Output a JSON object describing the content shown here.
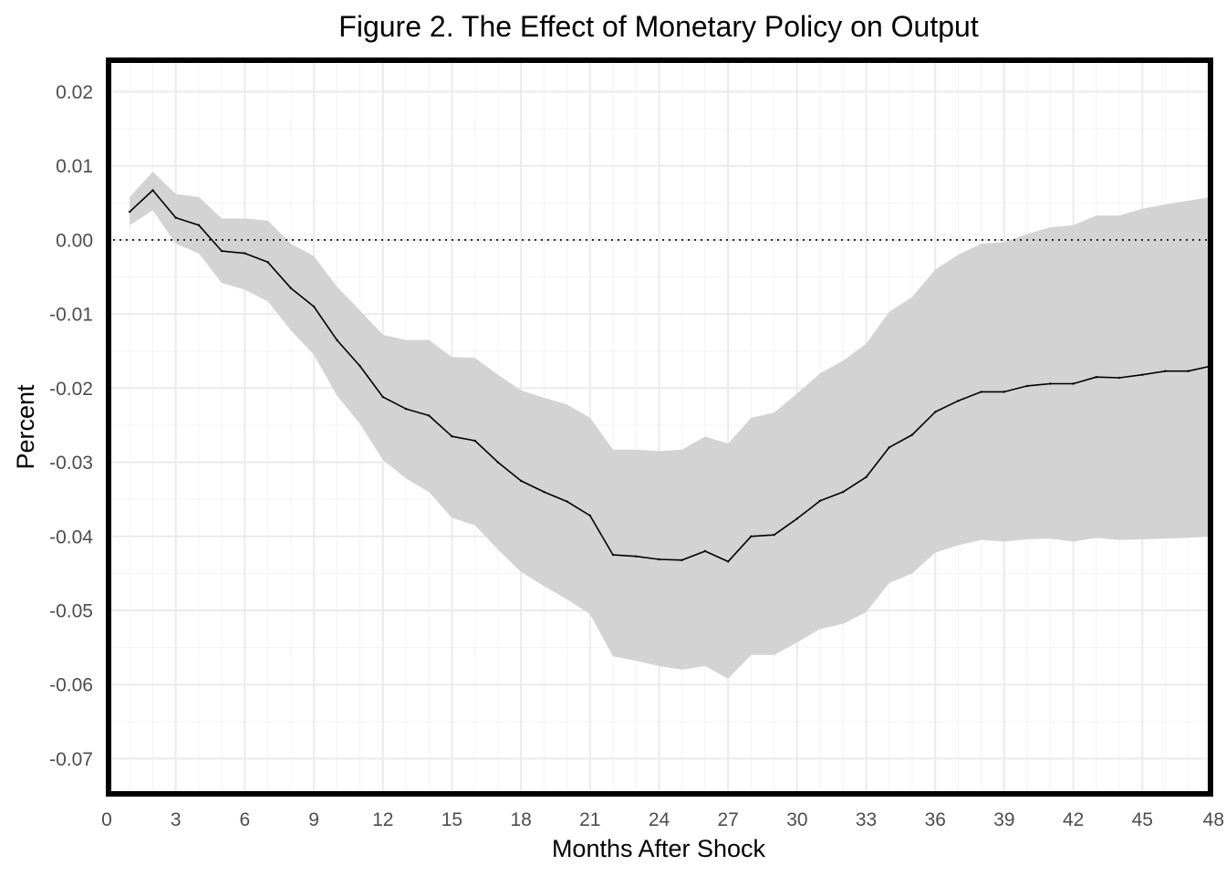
{
  "chart_data": {
    "type": "line",
    "title": "Figure 2. The Effect of Monetary Policy on Output",
    "xlabel": "Months After Shock",
    "ylabel": "Percent",
    "xlim": [
      0,
      48
    ],
    "ylim": [
      -0.075,
      0.0245
    ],
    "x_ticks": [
      0,
      3,
      6,
      9,
      12,
      15,
      18,
      21,
      24,
      27,
      30,
      33,
      36,
      39,
      42,
      45,
      48
    ],
    "x_tick_labels": [
      "0",
      "3",
      "6",
      "9",
      "12",
      "15",
      "18",
      "21",
      "24",
      "27",
      "30",
      "33",
      "36",
      "39",
      "42",
      "45",
      "48"
    ],
    "y_ticks": [
      0.02,
      0.01,
      0.0,
      -0.01,
      -0.02,
      -0.03,
      -0.04,
      -0.05,
      -0.06,
      -0.07
    ],
    "y_tick_labels": [
      "0.02",
      "0.01",
      "0.00",
      "-0.01",
      "-0.02",
      "-0.03",
      "-0.04",
      "-0.05",
      "-0.06",
      "-0.07"
    ],
    "grid": true,
    "reference_line": 0.0,
    "x": [
      1,
      2,
      3,
      4,
      5,
      6,
      7,
      8,
      9,
      10,
      11,
      12,
      13,
      14,
      15,
      16,
      17,
      18,
      19,
      20,
      21,
      22,
      23,
      24,
      25,
      26,
      27,
      28,
      29,
      30,
      31,
      32,
      33,
      34,
      35,
      36,
      37,
      38,
      39,
      40,
      41,
      42,
      43,
      44,
      45,
      46,
      47,
      48
    ],
    "series": [
      {
        "values": [
          0.0038,
          0.0067,
          0.003,
          0.002,
          -0.0015,
          -0.0018,
          -0.003,
          -0.0065,
          -0.009,
          -0.0135,
          -0.017,
          -0.0212,
          -0.0228,
          -0.0237,
          -0.0265,
          -0.0271,
          -0.03,
          -0.0325,
          -0.034,
          -0.0353,
          -0.0372,
          -0.0425,
          -0.0427,
          -0.0431,
          -0.0432,
          -0.042,
          -0.0434,
          -0.04,
          -0.0398,
          -0.0376,
          -0.0352,
          -0.034,
          -0.032,
          -0.028,
          -0.0263,
          -0.0232,
          -0.0217,
          -0.0205,
          -0.0205,
          -0.0197,
          -0.0194,
          -0.0194,
          -0.0185,
          -0.0186,
          -0.0182,
          -0.0177,
          -0.0177,
          -0.017
        ],
        "upper": [
          0.0058,
          0.0092,
          0.0062,
          0.0058,
          0.0029,
          0.0029,
          0.0026,
          -0.0005,
          -0.0022,
          -0.0063,
          -0.0095,
          -0.0128,
          -0.0135,
          -0.0135,
          -0.0158,
          -0.0159,
          -0.0182,
          -0.0203,
          -0.0213,
          -0.0222,
          -0.024,
          -0.0283,
          -0.0283,
          -0.0285,
          -0.0283,
          -0.0265,
          -0.0275,
          -0.024,
          -0.0233,
          -0.0207,
          -0.018,
          -0.0163,
          -0.014,
          -0.0097,
          -0.0077,
          -0.004,
          -0.002,
          -0.0005,
          -0.0003,
          0.0008,
          0.0017,
          0.002,
          0.0033,
          0.0033,
          0.0042,
          0.0048,
          0.0053,
          0.0058
        ],
        "lower": [
          0.002,
          0.004,
          -0.0005,
          -0.0018,
          -0.0058,
          -0.0067,
          -0.0083,
          -0.0122,
          -0.0155,
          -0.021,
          -0.0248,
          -0.0297,
          -0.0322,
          -0.034,
          -0.0375,
          -0.0385,
          -0.0418,
          -0.0448,
          -0.0467,
          -0.0485,
          -0.0505,
          -0.0562,
          -0.0568,
          -0.0575,
          -0.058,
          -0.0575,
          -0.0592,
          -0.056,
          -0.056,
          -0.0543,
          -0.0525,
          -0.0518,
          -0.0502,
          -0.0463,
          -0.045,
          -0.0422,
          -0.0412,
          -0.0405,
          -0.0407,
          -0.0404,
          -0.0403,
          -0.0407,
          -0.0402,
          -0.0405,
          -0.0404,
          -0.0403,
          -0.0402,
          -0.04
        ]
      }
    ]
  }
}
